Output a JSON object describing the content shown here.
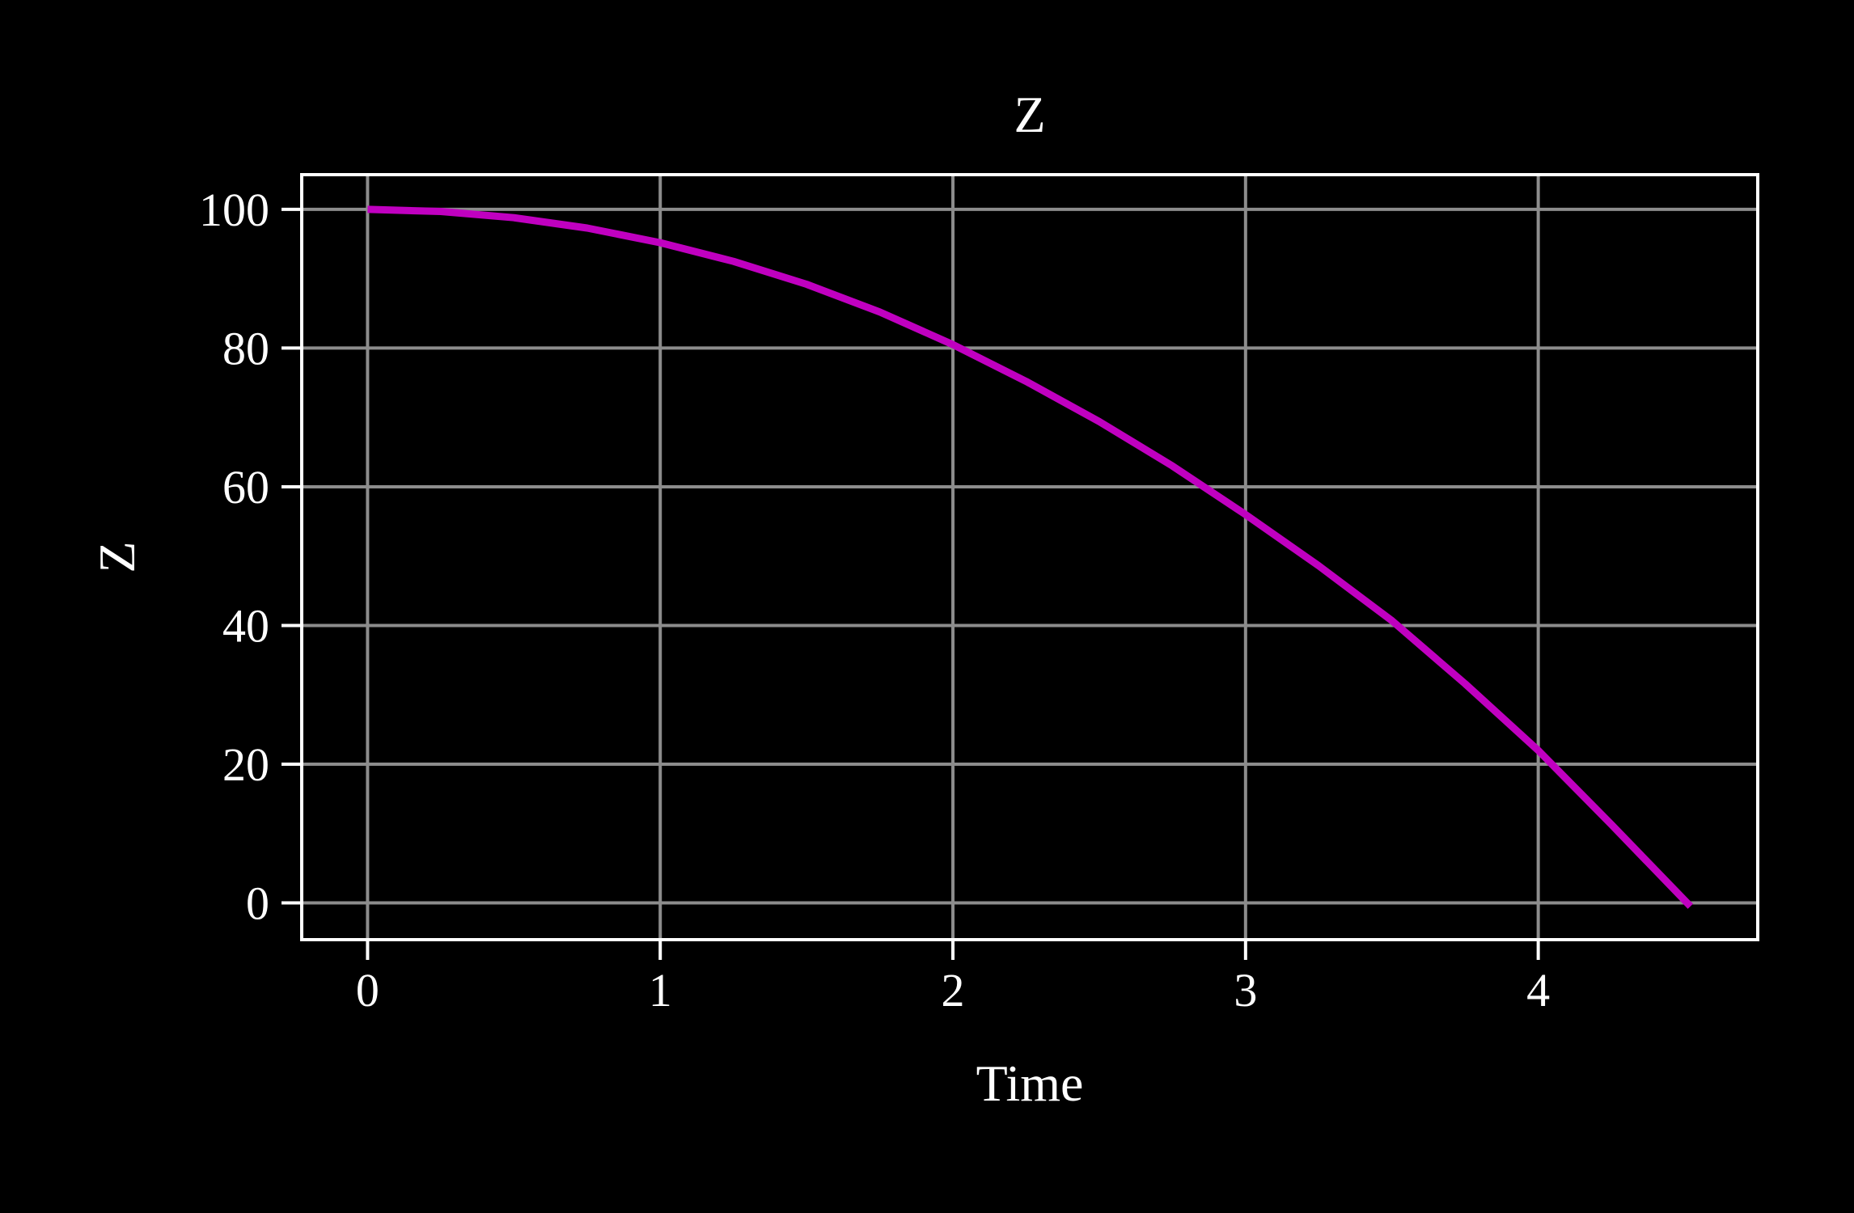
{
  "chart_data": {
    "type": "line",
    "title": "Z",
    "xlabel": "Time",
    "ylabel": "Z",
    "xlim": [
      -0.225,
      4.75
    ],
    "ylim": [
      -5.3,
      105
    ],
    "xticks": [
      "0",
      "1",
      "2",
      "3",
      "4"
    ],
    "yticks": [
      "0",
      "20",
      "40",
      "60",
      "80",
      "100"
    ],
    "grid": true,
    "background": "#000000",
    "foreground": "#ffffff",
    "grid_color": "#8c8c8c",
    "series": [
      {
        "color": "#c000c0",
        "x": [
          0,
          0.25,
          0.5,
          0.75,
          1.0,
          1.25,
          1.5,
          1.75,
          2.0,
          2.25,
          2.5,
          2.75,
          3.0,
          3.25,
          3.5,
          3.75,
          4.0,
          4.25,
          4.52
        ],
        "y": [
          100,
          99.7,
          98.8,
          97.3,
          95.2,
          92.5,
          89.2,
          85.2,
          80.5,
          75.2,
          69.4,
          63.0,
          56.0,
          48.6,
          40.7,
          31.6,
          22.0,
          11.3,
          -0.5
        ]
      }
    ]
  }
}
